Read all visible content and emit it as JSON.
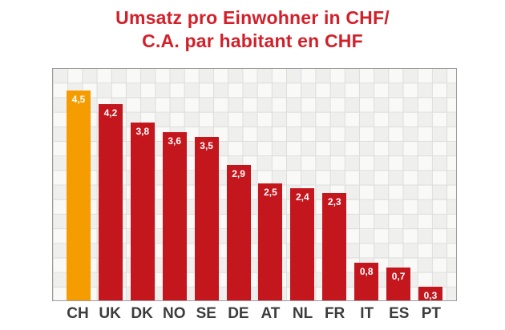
{
  "title": {
    "line1": "Umsatz pro Einwohner in CHF/",
    "line2": "C.A. par habitant en CHF"
  },
  "chart_data": {
    "type": "bar",
    "title": "Umsatz pro Einwohner in CHF / C.A. par habitant en CHF",
    "categories": [
      "CH",
      "UK",
      "DK",
      "NO",
      "SE",
      "DE",
      "AT",
      "NL",
      "FR",
      "IT",
      "ES",
      "PT"
    ],
    "values": [
      4.5,
      4.2,
      3.8,
      3.6,
      3.5,
      2.9,
      2.5,
      2.4,
      2.3,
      0.8,
      0.7,
      0.3
    ],
    "value_labels": [
      "4,5",
      "4,2",
      "3,8",
      "3,6",
      "3,5",
      "2,9",
      "2,5",
      "2,4",
      "2,3",
      "0,8",
      "0,7",
      "0,3"
    ],
    "xlabel": "",
    "ylabel": "",
    "ylim": [
      0,
      5
    ],
    "grid": true,
    "legend": "none",
    "highlight_category": "CH",
    "colors": {
      "bar": "#c3161d",
      "highlight": "#f59c00",
      "title": "#d2202a",
      "axis_label": "#3c3c3b",
      "value_text": "#ffffff",
      "grid_line": "#dddddc",
      "plot_border": "#9d9d9c"
    }
  }
}
